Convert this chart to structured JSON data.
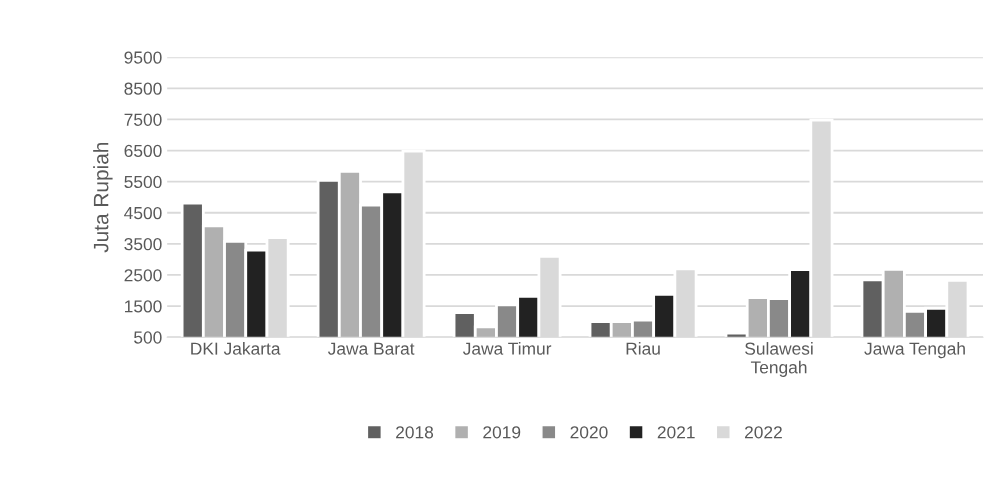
{
  "chart_data": {
    "type": "bar",
    "ylabel": "Juta Rupiah",
    "categories": [
      "DKI Jakarta",
      "Jawa Barat",
      "Jawa Timur",
      "Riau",
      "Sulawesi\nTengah",
      "Jawa Tengah"
    ],
    "series": [
      {
        "name": "2018",
        "color": "#606060",
        "values": [
          4810,
          5540,
          1290,
          1000,
          630,
          2340
        ]
      },
      {
        "name": "2019",
        "color": "#b0b0b0",
        "values": [
          4080,
          5830,
          830,
          1000,
          1770,
          2680
        ]
      },
      {
        "name": "2020",
        "color": "#898989",
        "values": [
          3580,
          4750,
          1540,
          1050,
          1740,
          1330
        ]
      },
      {
        "name": "2021",
        "color": "#222222",
        "values": [
          3300,
          5170,
          1810,
          1880,
          2670,
          1430
        ]
      },
      {
        "name": "2022",
        "color": "#d9d9d9",
        "values": [
          3700,
          6480,
          3100,
          2700,
          7480,
          2330
        ]
      }
    ],
    "ylim": [
      500,
      9500
    ],
    "yticks": [
      500,
      1500,
      2500,
      3500,
      4500,
      5500,
      6500,
      7500,
      8500,
      9500
    ],
    "grid": "y",
    "legend": "bottom"
  }
}
